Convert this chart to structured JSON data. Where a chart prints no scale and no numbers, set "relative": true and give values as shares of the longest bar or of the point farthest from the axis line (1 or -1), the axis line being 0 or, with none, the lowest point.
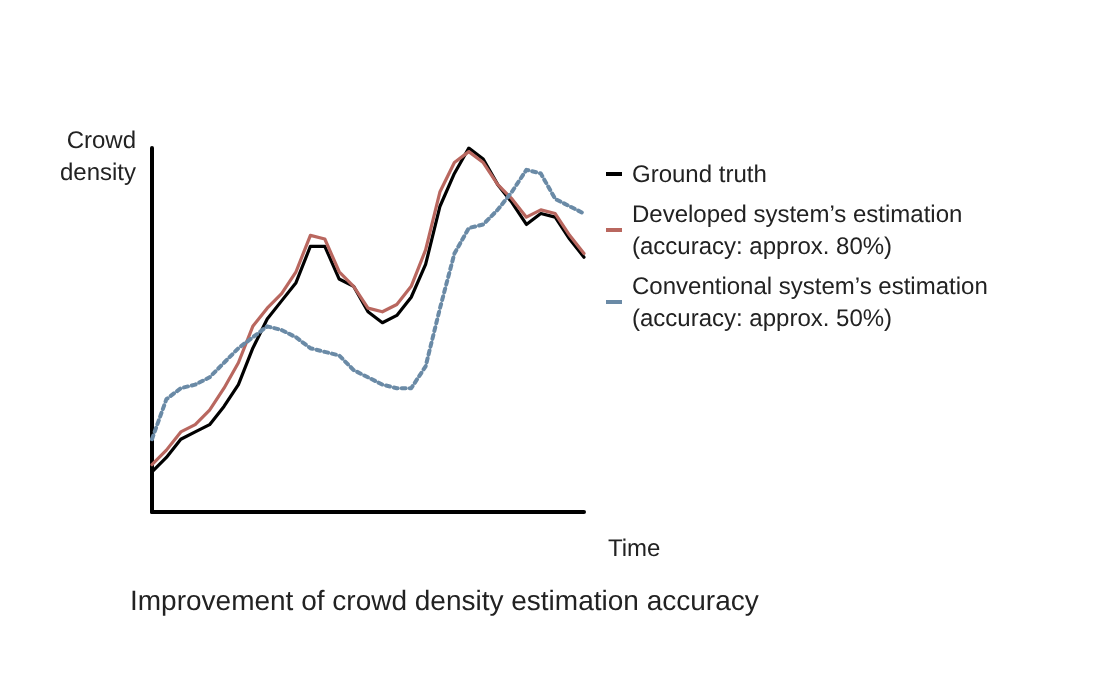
{
  "chart_data": {
    "type": "line",
    "title": "Improvement of crowd density estimation accuracy",
    "xlabel": "Time",
    "ylabel": "Crowd density",
    "relative": true,
    "legend": "right",
    "grid": false,
    "categories": [
      null,
      null,
      null,
      null,
      null,
      null,
      null,
      null,
      null,
      null,
      null,
      null,
      null,
      null,
      null,
      null,
      null,
      null,
      null,
      null,
      null,
      null,
      null,
      null,
      null,
      null,
      null,
      null,
      null,
      null,
      null
    ],
    "series": [
      {
        "name": "Ground truth",
        "color": "#000000",
        "line_style": "solid",
        "values": [
          0.11,
          0.15,
          0.2,
          0.22,
          0.24,
          0.29,
          0.35,
          0.45,
          0.53,
          0.58,
          0.63,
          0.73,
          0.73,
          0.64,
          0.62,
          0.55,
          0.52,
          0.54,
          0.59,
          0.68,
          0.84,
          0.93,
          1,
          0.97,
          0.9,
          0.85,
          0.79,
          0.82,
          0.81,
          0.75,
          0.7
        ]
      },
      {
        "name": "Developed system’s estimation (accuracy: approx. 80%)",
        "color": "#b9675f",
        "line_style": "solid",
        "values": [
          0.13,
          0.17,
          0.22,
          0.24,
          0.28,
          0.34,
          0.41,
          0.51,
          0.56,
          0.6,
          0.66,
          0.76,
          0.75,
          0.66,
          0.62,
          0.56,
          0.55,
          0.57,
          0.62,
          0.72,
          0.88,
          0.96,
          0.99,
          0.96,
          0.9,
          0.86,
          0.81,
          0.83,
          0.82,
          0.76,
          0.71
        ]
      },
      {
        "name": "Conventional system’s estimation (accuracy: approx. 50%)",
        "color": "#6a8aa6",
        "line_style": "dotted",
        "values": [
          0.2,
          0.31,
          0.34,
          0.35,
          0.37,
          0.41,
          0.45,
          0.48,
          0.51,
          0.5,
          0.48,
          0.45,
          0.44,
          0.43,
          0.39,
          0.37,
          0.35,
          0.34,
          0.34,
          0.4,
          0.56,
          0.71,
          0.78,
          0.79,
          0.83,
          0.88,
          0.94,
          0.93,
          0.86,
          0.84,
          0.82
        ]
      }
    ]
  }
}
